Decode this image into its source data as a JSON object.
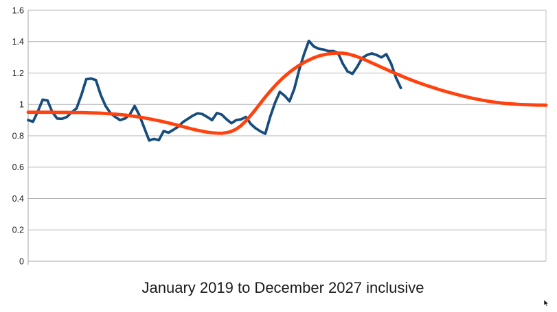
{
  "chart_data": {
    "type": "line",
    "title": "",
    "xlabel": "January 2019 to December 2027 inclusive",
    "ylabel": "",
    "ylim": [
      0,
      1.6
    ],
    "y_ticks": [
      "0",
      "0.2",
      "0.4",
      "0.6",
      "0.8",
      "1",
      "1.2",
      "1.4",
      "1.6"
    ],
    "x_axis": {
      "start": "January 2019",
      "end": "December 2027",
      "months_total": 108,
      "tick_labels_shown": false
    },
    "grid": true,
    "legend": "none",
    "colors": {
      "series_actual": "#174D7D",
      "series_trend": "#FF420E",
      "gridline": "#B3B3B3",
      "axis": "#A6A6A6",
      "plot_border": "#BFBFBF",
      "text": "#1A1A1A",
      "background": "#FFFFFF"
    },
    "series": [
      {
        "name": "monthly-values-jagged-line",
        "color_key": "series_actual",
        "stroke_width": 3.8,
        "start_month_index": 0,
        "values": [
          0.9,
          0.89,
          0.955,
          1.03,
          1.025,
          0.95,
          0.91,
          0.908,
          0.92,
          0.95,
          0.975,
          1.06,
          1.16,
          1.165,
          1.155,
          1.06,
          0.99,
          0.945,
          0.92,
          0.9,
          0.91,
          0.935,
          0.99,
          0.93,
          0.85,
          0.77,
          0.78,
          0.772,
          0.83,
          0.82,
          0.838,
          0.858,
          0.888,
          0.908,
          0.928,
          0.943,
          0.938,
          0.92,
          0.9,
          0.945,
          0.935,
          0.905,
          0.88,
          0.9,
          0.905,
          0.92,
          0.875,
          0.848,
          0.828,
          0.813,
          0.92,
          1.01,
          1.08,
          1.055,
          1.02,
          1.1,
          1.22,
          1.32,
          1.405,
          1.37,
          1.355,
          1.35,
          1.34,
          1.34,
          1.33,
          1.26,
          1.21,
          1.195,
          1.24,
          1.295,
          1.315,
          1.325,
          1.315,
          1.3,
          1.32,
          1.26,
          1.17,
          1.105
        ]
      },
      {
        "name": "smooth-trend-line",
        "color_key": "series_trend",
        "stroke_width": 4.8,
        "start_month_index": 0,
        "values": [
          0.95,
          0.95,
          0.95,
          0.95,
          0.95,
          0.95,
          0.949,
          0.949,
          0.949,
          0.948,
          0.948,
          0.948,
          0.947,
          0.946,
          0.945,
          0.944,
          0.942,
          0.94,
          0.938,
          0.935,
          0.932,
          0.928,
          0.924,
          0.919,
          0.914,
          0.908,
          0.902,
          0.896,
          0.889,
          0.882,
          0.874,
          0.866,
          0.858,
          0.85,
          0.842,
          0.835,
          0.829,
          0.823,
          0.819,
          0.817,
          0.816,
          0.82,
          0.828,
          0.843,
          0.865,
          0.895,
          0.93,
          0.968,
          1.008,
          1.047,
          1.084,
          1.118,
          1.15,
          1.179,
          1.205,
          1.228,
          1.249,
          1.267,
          1.283,
          1.297,
          1.308,
          1.316,
          1.322,
          1.326,
          1.328,
          1.327,
          1.322,
          1.314,
          1.304,
          1.292,
          1.279,
          1.265,
          1.251,
          1.237,
          1.223,
          1.209,
          1.196,
          1.183,
          1.17,
          1.158,
          1.146,
          1.135,
          1.124,
          1.114,
          1.104,
          1.094,
          1.085,
          1.076,
          1.068,
          1.06,
          1.052,
          1.045,
          1.038,
          1.032,
          1.026,
          1.021,
          1.016,
          1.012,
          1.008,
          1.005,
          1.003,
          1.001,
          0.999,
          0.998,
          0.997,
          0.996,
          0.996,
          0.995
        ]
      }
    ]
  },
  "cursor": {
    "visible": true,
    "position": "bottom-right"
  }
}
